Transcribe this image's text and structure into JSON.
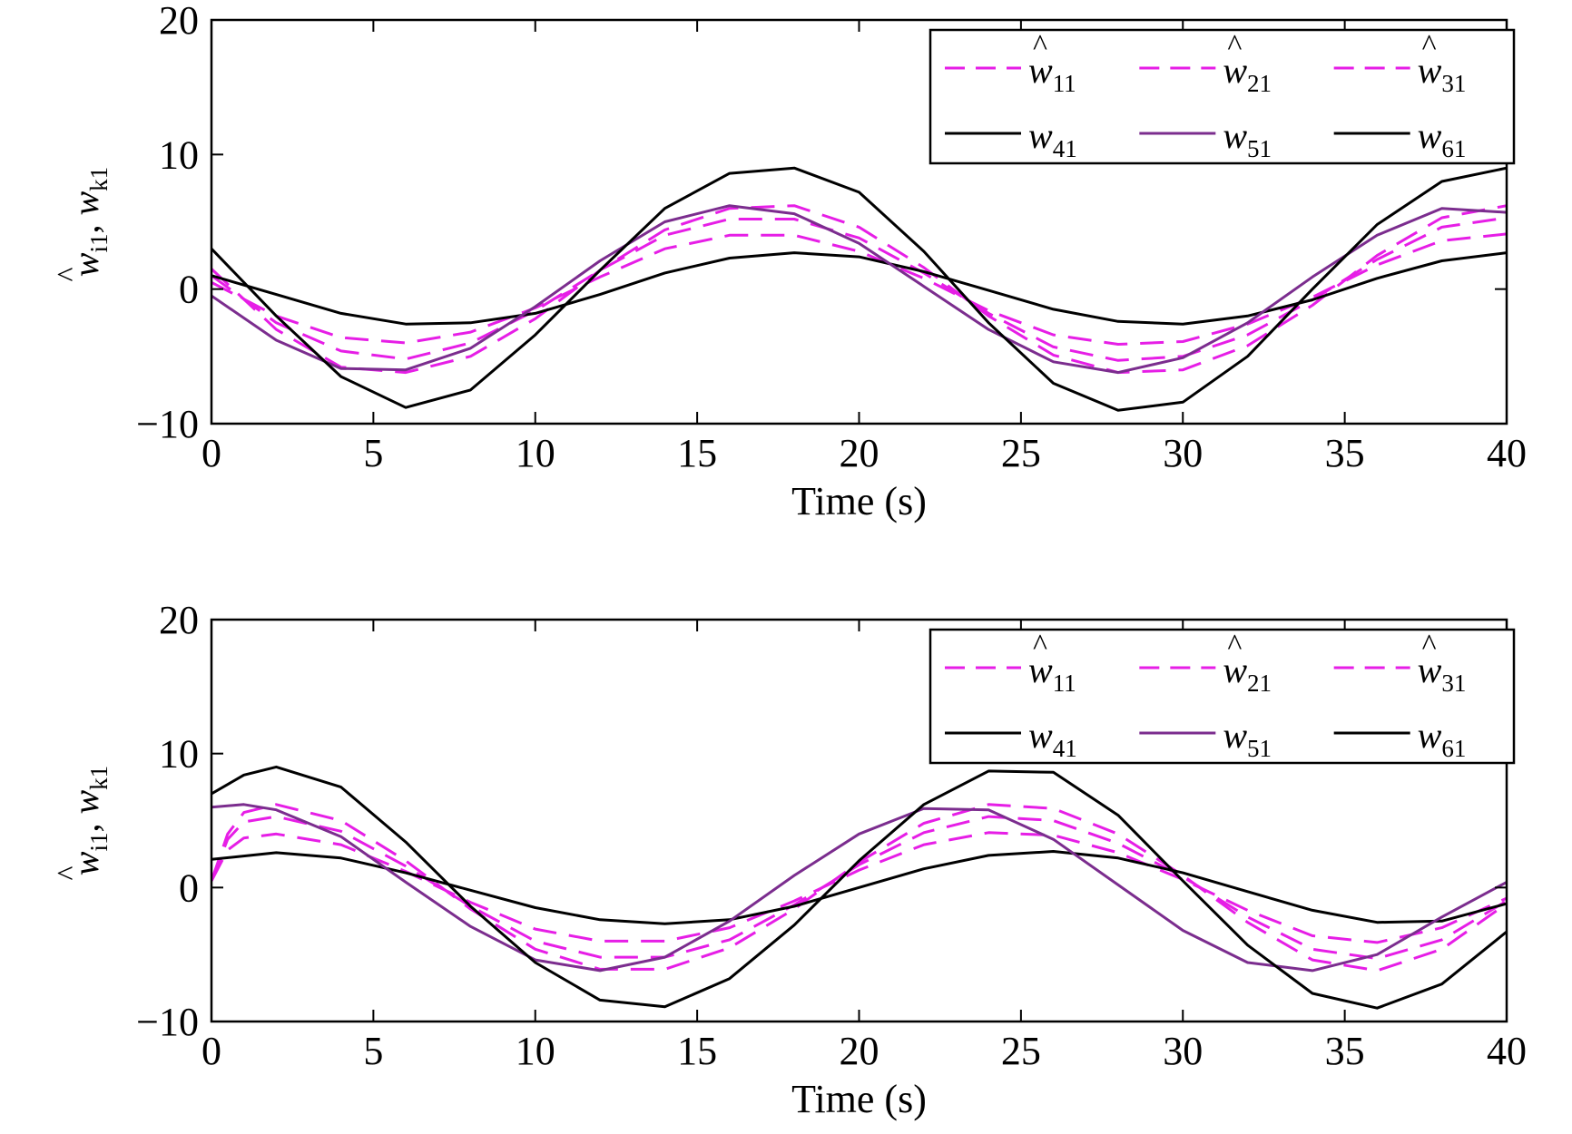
{
  "chart_data": [
    {
      "type": "line",
      "xlabel": "Time (s)",
      "ylabel": {
        "base": "w",
        "hat_sub": "i1",
        "sep": ", ",
        "base2": "w",
        "sub2": "k1"
      },
      "xlim": [
        0,
        40
      ],
      "ylim": [
        -10,
        20
      ],
      "xticks": [
        0,
        5,
        10,
        15,
        20,
        25,
        30,
        35,
        40
      ],
      "yticks": [
        -10,
        0,
        10,
        20
      ],
      "ytick_labels": [
        "−10",
        "0",
        "10",
        "20"
      ],
      "grid": false,
      "legend_position": "top-right",
      "legend_columns": 3,
      "series": [
        {
          "name": "ŵ11",
          "base": "w",
          "sub": "11",
          "hat": true,
          "style": "dashed",
          "color": "#e61ee6",
          "x": [
            0,
            2,
            4,
            6,
            8,
            10,
            12,
            14,
            16,
            18,
            20,
            22,
            24,
            26,
            28,
            30,
            32,
            34,
            36,
            38,
            40
          ],
          "y": [
            1.5,
            -3.0,
            -5.8,
            -6.2,
            -5.0,
            -2.2,
            1.4,
            4.4,
            6.0,
            6.2,
            4.6,
            1.6,
            -2.0,
            -4.9,
            -6.2,
            -6.0,
            -4.2,
            -1.2,
            2.5,
            5.3,
            6.2
          ]
        },
        {
          "name": "ŵ21",
          "base": "w",
          "sub": "21",
          "hat": true,
          "style": "dashed",
          "color": "#e61ee6",
          "x": [
            0,
            2,
            4,
            6,
            8,
            10,
            12,
            14,
            16,
            18,
            20,
            22,
            24,
            26,
            28,
            30,
            32,
            34,
            36,
            38,
            40
          ],
          "y": [
            1.0,
            -2.5,
            -4.6,
            -5.2,
            -4.0,
            -1.6,
            1.4,
            4.0,
            5.2,
            5.2,
            3.8,
            1.2,
            -1.8,
            -4.3,
            -5.3,
            -5.0,
            -3.4,
            -0.8,
            2.2,
            4.6,
            5.3
          ]
        },
        {
          "name": "ŵ31",
          "base": "w",
          "sub": "31",
          "hat": true,
          "style": "dashed",
          "color": "#e61ee6",
          "x": [
            0,
            2,
            4,
            6,
            8,
            10,
            12,
            14,
            16,
            18,
            20,
            22,
            24,
            26,
            28,
            30,
            32,
            34,
            36,
            38,
            40
          ],
          "y": [
            0.5,
            -2.0,
            -3.6,
            -4.0,
            -3.2,
            -1.4,
            0.9,
            3.0,
            4.0,
            4.0,
            2.8,
            0.8,
            -1.6,
            -3.4,
            -4.1,
            -3.9,
            -2.6,
            -0.6,
            1.8,
            3.6,
            4.1
          ]
        },
        {
          "name": "w41",
          "base": "w",
          "sub": "41",
          "hat": false,
          "style": "solid",
          "color": "#000000",
          "x": [
            0,
            2,
            4,
            6,
            8,
            10,
            12,
            14,
            16,
            18,
            20,
            22,
            24,
            26,
            28,
            30,
            32,
            34,
            36,
            38,
            40
          ],
          "y": [
            1.0,
            -0.4,
            -1.8,
            -2.6,
            -2.5,
            -1.8,
            -0.4,
            1.2,
            2.3,
            2.7,
            2.4,
            1.3,
            -0.1,
            -1.5,
            -2.4,
            -2.6,
            -2.0,
            -0.8,
            0.8,
            2.1,
            2.7
          ]
        },
        {
          "name": "w51",
          "base": "w",
          "sub": "51",
          "hat": false,
          "style": "solid",
          "color": "#7b2d8e",
          "x": [
            0,
            2,
            4,
            6,
            8,
            10,
            12,
            14,
            16,
            18,
            20,
            22,
            24,
            26,
            28,
            30,
            32,
            34,
            36,
            38,
            40
          ],
          "y": [
            -0.5,
            -3.8,
            -5.9,
            -6.0,
            -4.4,
            -1.3,
            2.1,
            5.0,
            6.2,
            5.6,
            3.4,
            0.2,
            -3.0,
            -5.4,
            -6.2,
            -5.1,
            -2.5,
            0.9,
            4.0,
            6.0,
            5.7
          ]
        },
        {
          "name": "w61",
          "base": "w",
          "sub": "61",
          "hat": false,
          "style": "solid",
          "color": "#000000",
          "x": [
            0,
            2,
            4,
            6,
            8,
            10,
            12,
            14,
            16,
            18,
            20,
            22,
            24,
            26,
            28,
            30,
            32,
            34,
            36,
            38,
            40
          ],
          "y": [
            3.0,
            -2.0,
            -6.5,
            -8.8,
            -7.5,
            -3.4,
            1.4,
            6.0,
            8.6,
            9.0,
            7.2,
            2.8,
            -2.5,
            -7.0,
            -9.0,
            -8.4,
            -5.0,
            0.0,
            4.8,
            8.0,
            9.0
          ]
        }
      ]
    },
    {
      "type": "line",
      "xlabel": "Time (s)",
      "ylabel": {
        "base": "w",
        "hat_sub": "i1",
        "sep": ", ",
        "base2": "w",
        "sub2": "k1"
      },
      "xlim": [
        0,
        40
      ],
      "ylim": [
        -10,
        20
      ],
      "xticks": [
        0,
        5,
        10,
        15,
        20,
        25,
        30,
        35,
        40
      ],
      "yticks": [
        -10,
        0,
        10,
        20
      ],
      "ytick_labels": [
        "−10",
        "0",
        "10",
        "20"
      ],
      "grid": false,
      "legend_position": "top-right",
      "legend_columns": 3,
      "series": [
        {
          "name": "ŵ11",
          "base": "w",
          "sub": "11",
          "hat": true,
          "style": "dashed",
          "color": "#e61ee6",
          "x": [
            0,
            0.5,
            1,
            2,
            4,
            6,
            8,
            10,
            12,
            14,
            16,
            18,
            20,
            22,
            24,
            26,
            28,
            30,
            32,
            34,
            36,
            38,
            40
          ],
          "y": [
            0.5,
            4.0,
            5.6,
            6.2,
            5.0,
            2.0,
            -1.6,
            -4.6,
            -6.1,
            -6.1,
            -4.5,
            -1.6,
            1.9,
            4.8,
            6.2,
            5.9,
            4.0,
            0.9,
            -2.6,
            -5.4,
            -6.2,
            -4.6,
            -1.2
          ]
        },
        {
          "name": "ŵ21",
          "base": "w",
          "sub": "21",
          "hat": true,
          "style": "dashed",
          "color": "#e61ee6",
          "x": [
            0,
            0.5,
            1,
            2,
            4,
            6,
            8,
            10,
            12,
            14,
            16,
            18,
            20,
            22,
            24,
            26,
            28,
            30,
            32,
            34,
            36,
            38,
            40
          ],
          "y": [
            0.5,
            3.6,
            4.9,
            5.3,
            4.2,
            1.6,
            -1.4,
            -4.0,
            -5.2,
            -5.2,
            -3.9,
            -1.3,
            1.7,
            4.1,
            5.3,
            5.0,
            3.3,
            0.8,
            -2.2,
            -4.6,
            -5.3,
            -3.9,
            -1.0
          ]
        },
        {
          "name": "ŵ31",
          "base": "w",
          "sub": "31",
          "hat": true,
          "style": "dashed",
          "color": "#e61ee6",
          "x": [
            0,
            0.5,
            1,
            2,
            4,
            6,
            8,
            10,
            12,
            14,
            16,
            18,
            20,
            22,
            24,
            26,
            28,
            30,
            32,
            34,
            36,
            38,
            40
          ],
          "y": [
            0.5,
            2.8,
            3.7,
            4.0,
            3.2,
            1.2,
            -1.1,
            -3.1,
            -4.0,
            -4.0,
            -3.0,
            -1.0,
            1.3,
            3.2,
            4.1,
            3.9,
            2.6,
            0.6,
            -1.7,
            -3.6,
            -4.1,
            -3.0,
            -0.8
          ]
        },
        {
          "name": "w41",
          "base": "w",
          "sub": "41",
          "hat": false,
          "style": "solid",
          "color": "#000000",
          "x": [
            0,
            2,
            4,
            6,
            8,
            10,
            12,
            14,
            16,
            18,
            20,
            22,
            24,
            26,
            28,
            30,
            32,
            34,
            36,
            38,
            40
          ],
          "y": [
            2.1,
            2.6,
            2.2,
            1.1,
            -0.2,
            -1.5,
            -2.4,
            -2.7,
            -2.4,
            -1.4,
            0.0,
            1.4,
            2.4,
            2.7,
            2.2,
            1.1,
            -0.3,
            -1.7,
            -2.6,
            -2.5,
            -1.2
          ]
        },
        {
          "name": "w51",
          "base": "w",
          "sub": "51",
          "hat": false,
          "style": "solid",
          "color": "#7b2d8e",
          "x": [
            0,
            1,
            2,
            4,
            6,
            8,
            10,
            12,
            14,
            16,
            18,
            20,
            22,
            24,
            26,
            28,
            30,
            32,
            34,
            36,
            38,
            40
          ],
          "y": [
            6.0,
            6.2,
            5.8,
            3.8,
            0.4,
            -2.9,
            -5.4,
            -6.2,
            -5.2,
            -2.5,
            0.9,
            4.0,
            5.9,
            5.8,
            3.6,
            0.2,
            -3.2,
            -5.6,
            -6.2,
            -5.0,
            -2.2,
            0.4
          ]
        },
        {
          "name": "w61",
          "base": "w",
          "sub": "61",
          "hat": false,
          "style": "solid",
          "color": "#000000",
          "x": [
            0,
            1,
            2,
            4,
            6,
            8,
            10,
            12,
            14,
            16,
            18,
            20,
            22,
            24,
            26,
            28,
            30,
            32,
            34,
            36,
            38,
            40
          ],
          "y": [
            7.0,
            8.4,
            9.0,
            7.5,
            3.4,
            -1.4,
            -5.6,
            -8.4,
            -8.9,
            -6.8,
            -2.8,
            2.0,
            6.2,
            8.7,
            8.6,
            5.4,
            0.5,
            -4.3,
            -7.9,
            -9.0,
            -7.2,
            -3.3
          ]
        }
      ]
    }
  ]
}
